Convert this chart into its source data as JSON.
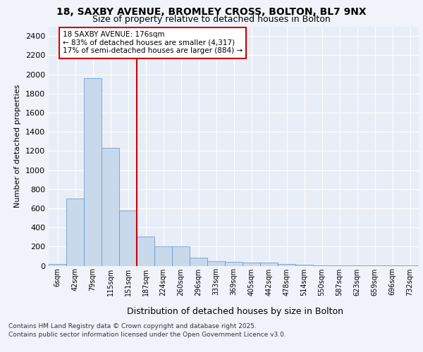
{
  "title_line1": "18, SAXBY AVENUE, BROMLEY CROSS, BOLTON, BL7 9NX",
  "title_line2": "Size of property relative to detached houses in Bolton",
  "xlabel": "Distribution of detached houses by size in Bolton",
  "ylabel": "Number of detached properties",
  "categories": [
    "6sqm",
    "42sqm",
    "79sqm",
    "115sqm",
    "151sqm",
    "187sqm",
    "224sqm",
    "260sqm",
    "296sqm",
    "333sqm",
    "369sqm",
    "405sqm",
    "442sqm",
    "478sqm",
    "514sqm",
    "550sqm",
    "587sqm",
    "623sqm",
    "659sqm",
    "696sqm",
    "732sqm"
  ],
  "values": [
    15,
    700,
    1960,
    1235,
    580,
    305,
    200,
    200,
    85,
    50,
    40,
    35,
    35,
    20,
    10,
    5,
    5,
    5,
    5,
    5,
    5
  ],
  "bar_color": "#c9d9ec",
  "bar_edge_color": "#6090c0",
  "vline_idx": 5,
  "vline_color": "#cc0000",
  "annotation_title": "18 SAXBY AVENUE: 176sqm",
  "annotation_line1": "← 83% of detached houses are smaller (4,317)",
  "annotation_line2": "17% of semi-detached houses are larger (884) →",
  "ylim_max": 2500,
  "yticks": [
    0,
    200,
    400,
    600,
    800,
    1000,
    1200,
    1400,
    1600,
    1800,
    2000,
    2200,
    2400
  ],
  "footnote1": "Contains HM Land Registry data © Crown copyright and database right 2025.",
  "footnote2": "Contains public sector information licensed under the Open Government Licence v3.0.",
  "plot_bg": "#e8eef7",
  "fig_bg": "#f0f4fa",
  "grid_color": "#ffffff",
  "title_fontsize": 10,
  "subtitle_fontsize": 9,
  "ylabel_fontsize": 8,
  "xlabel_fontsize": 9,
  "tick_fontsize": 7,
  "annotation_fontsize": 7.5,
  "footnote_fontsize": 6.5
}
